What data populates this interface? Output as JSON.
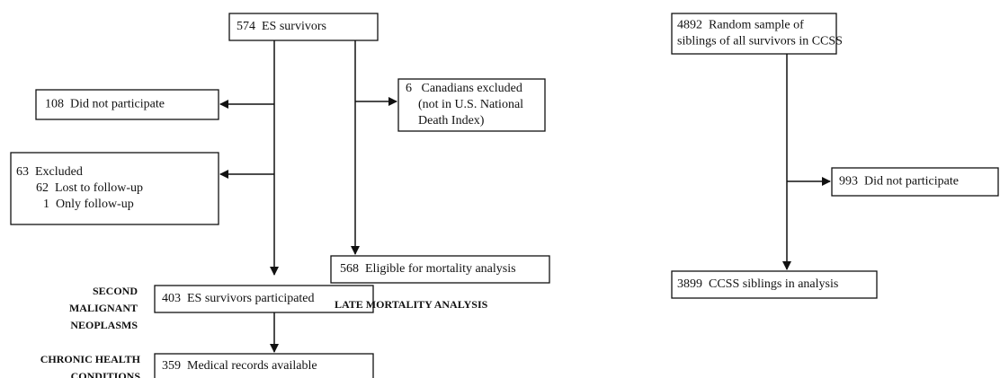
{
  "nodes": [
    {
      "id": "es",
      "lines": [
        "574  ES survivors"
      ]
    },
    {
      "id": "np",
      "lines": [
        "108  Did not participate"
      ]
    },
    {
      "id": "can",
      "lines": [
        "6   Canadians excluded",
        "(not in U.S. National",
        "Death Index)"
      ]
    },
    {
      "id": "exc",
      "lines": [
        "63  Excluded",
        "62  Lost to follow-up",
        "1  Only follow-up"
      ]
    },
    {
      "id": "elig",
      "lines": [
        "568  Eligible for mortality analysis"
      ]
    },
    {
      "id": "part",
      "lines": [
        "403  ES survivors participated"
      ]
    },
    {
      "id": "med",
      "lines": [
        "359  Medical records available"
      ]
    },
    {
      "id": "sib",
      "lines": [
        "4892  Random sample of",
        "siblings of all survivors in CCSS"
      ]
    },
    {
      "id": "sibnp",
      "lines": [
        "993  Did not participate"
      ]
    },
    {
      "id": "sibin",
      "lines": [
        "3899  CCSS siblings in analysis"
      ]
    }
  ],
  "section_labels": [
    {
      "lines": [
        "LATE MORTALITY ANALYSIS"
      ]
    },
    {
      "lines": [
        "SECOND",
        "MALIGNANT",
        "NEOPLASMS"
      ]
    },
    {
      "lines": [
        "CHRONIC HEALTH",
        "CONDITIONS"
      ]
    }
  ]
}
